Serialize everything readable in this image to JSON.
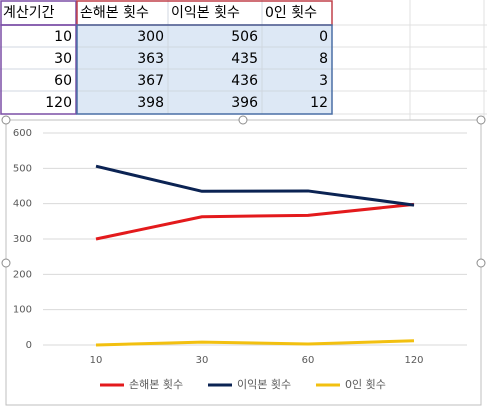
{
  "table": {
    "header": [
      "계산기간",
      "손해본 횟수",
      "이익본 횟수",
      "0인 횟수"
    ],
    "rows": [
      [
        10,
        300,
        506,
        0
      ],
      [
        30,
        363,
        435,
        8
      ],
      [
        60,
        367,
        436,
        3
      ],
      [
        120,
        398,
        396,
        12
      ]
    ]
  },
  "chart_data": {
    "type": "line",
    "categories": [
      10,
      30,
      60,
      120
    ],
    "series": [
      {
        "name": "손해본 횟수",
        "color": "#e31a1c",
        "values": [
          300,
          363,
          367,
          398
        ]
      },
      {
        "name": "이익본 횟수",
        "color": "#0b2353",
        "values": [
          506,
          435,
          436,
          396
        ]
      },
      {
        "name": "0인 횟수",
        "color": "#f2c010",
        "values": [
          0,
          8,
          3,
          12
        ]
      }
    ],
    "ylim": [
      0,
      600
    ],
    "yticks": [
      0,
      100,
      200,
      300,
      400,
      500,
      600
    ],
    "grid": true,
    "legend": "bottom"
  }
}
